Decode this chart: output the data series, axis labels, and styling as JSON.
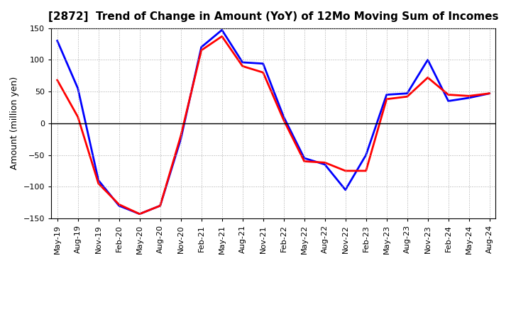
{
  "title": "[2872]  Trend of Change in Amount (YoY) of 12Mo Moving Sum of Incomes",
  "ylabel": "Amount (million yen)",
  "background_color": "#ffffff",
  "grid_color": "#aaaaaa",
  "tick_labels": [
    "May-19",
    "Aug-19",
    "Nov-19",
    "Feb-20",
    "May-20",
    "Aug-20",
    "Nov-20",
    "Feb-21",
    "May-21",
    "Aug-21",
    "Nov-21",
    "Feb-22",
    "May-22",
    "Aug-22",
    "Nov-22",
    "Feb-23",
    "May-23",
    "Aug-23",
    "Nov-23",
    "Feb-24",
    "May-24",
    "Aug-24"
  ],
  "ordinary_income": [
    130,
    55,
    -90,
    -130,
    -143,
    -130,
    -25,
    120,
    147,
    96,
    94,
    10,
    -55,
    -65,
    -105,
    -50,
    45,
    47,
    100,
    35,
    40,
    47
  ],
  "net_income": [
    68,
    10,
    -95,
    -128,
    -143,
    -130,
    -20,
    115,
    137,
    90,
    80,
    5,
    -60,
    -62,
    -75,
    -75,
    38,
    42,
    72,
    45,
    43,
    47
  ],
  "ylim": [
    -150,
    150
  ],
  "yticks": [
    -150,
    -100,
    -50,
    0,
    50,
    100,
    150
  ],
  "ordinary_color": "#0000ff",
  "net_color": "#ff0000",
  "line_width": 2.0,
  "title_fontsize": 11,
  "ylabel_fontsize": 9,
  "tick_fontsize": 8
}
